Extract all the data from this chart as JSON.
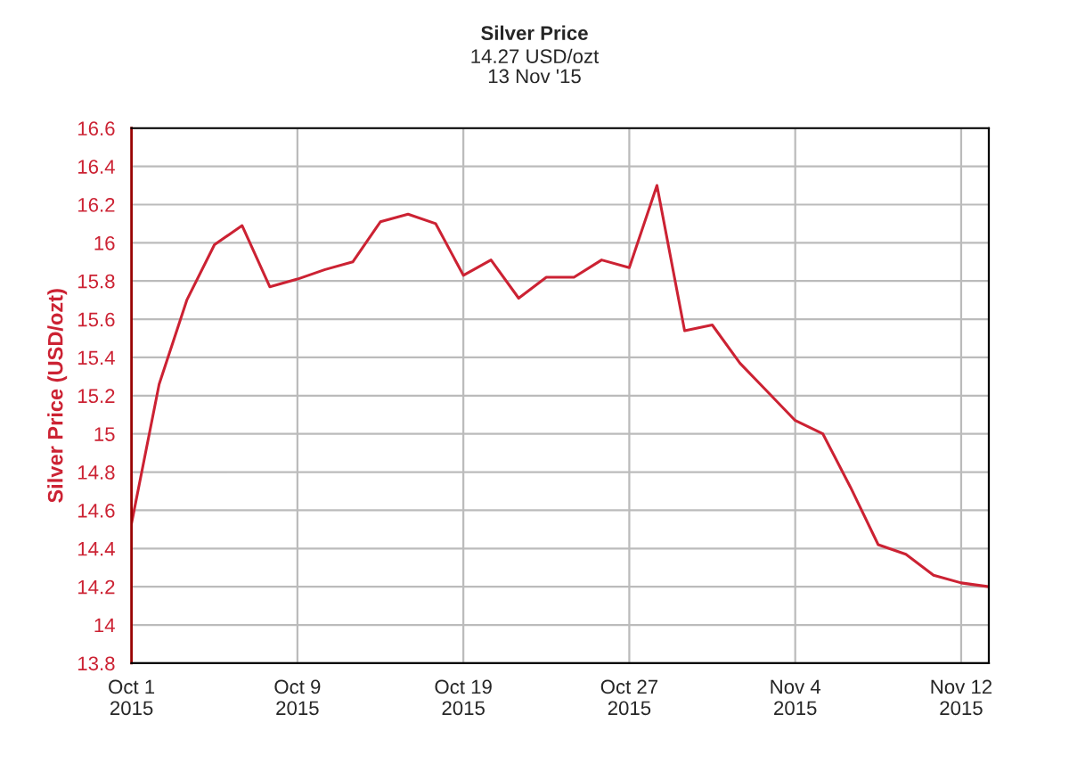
{
  "chart_data": {
    "type": "line",
    "title": "Silver Price",
    "subtitle": "14.27 USD/ozt\n13 Nov '15",
    "ylabel": "Silver Price (USD/ozt)",
    "categories": [
      "Oct 1\n2015",
      null,
      null,
      null,
      null,
      null,
      "Oct 9\n2015",
      null,
      null,
      null,
      null,
      null,
      "Oct 19\n2015",
      null,
      null,
      null,
      null,
      null,
      "Oct 27\n2015",
      null,
      null,
      null,
      null,
      null,
      "Nov 4\n2015",
      null,
      null,
      null,
      null,
      null,
      "Nov 12\n2015",
      null
    ],
    "series": [
      {
        "color": "#cc2233",
        "values": [
          14.53,
          15.26,
          15.7,
          15.99,
          16.09,
          15.77,
          15.81,
          15.86,
          15.9,
          16.11,
          16.15,
          16.1,
          15.83,
          15.91,
          15.71,
          15.82,
          15.82,
          15.91,
          15.87,
          16.3,
          15.54,
          15.57,
          15.37,
          15.22,
          15.07,
          15.0,
          14.72,
          14.42,
          14.37,
          14.26,
          14.22,
          14.2
        ]
      }
    ],
    "ylim": [
      13.8,
      16.6
    ],
    "yticks": [
      13.8,
      14,
      14.2,
      14.4,
      14.6,
      14.8,
      15,
      15.2,
      15.4,
      15.6,
      15.8,
      16,
      16.2,
      16.4,
      16.6
    ],
    "grid": true,
    "marker": "none",
    "line_style": "solid"
  }
}
